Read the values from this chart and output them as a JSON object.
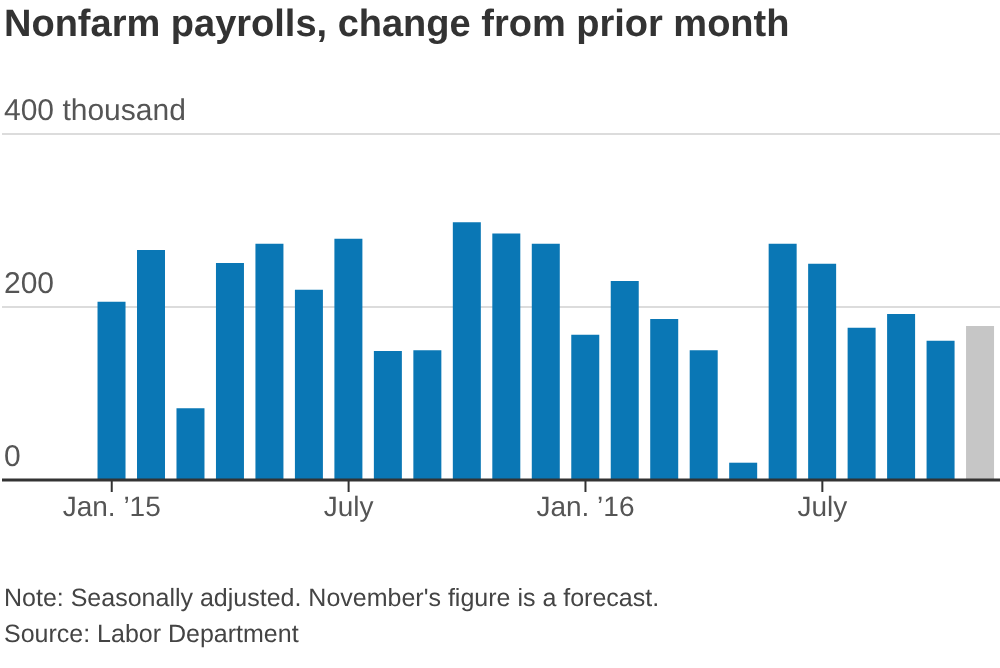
{
  "chart_data": {
    "type": "bar",
    "title": "Nonfarm payrolls, change from prior month",
    "categories": [
      "Jan. ’15",
      null,
      null,
      null,
      null,
      null,
      "July",
      null,
      null,
      null,
      null,
      null,
      "Jan. ’16",
      null,
      null,
      null,
      null,
      null,
      "July",
      null,
      null,
      null,
      null
    ],
    "values": [
      206,
      266,
      83,
      251,
      273,
      220,
      279,
      149,
      150,
      298,
      285,
      273,
      168,
      230,
      186,
      150,
      20,
      273,
      250,
      176,
      192,
      161,
      178
    ],
    "colors": [
      "#0a77b5",
      "#0a77b5",
      "#0a77b5",
      "#0a77b5",
      "#0a77b5",
      "#0a77b5",
      "#0a77b5",
      "#0a77b5",
      "#0a77b5",
      "#0a77b5",
      "#0a77b5",
      "#0a77b5",
      "#0a77b5",
      "#0a77b5",
      "#0a77b5",
      "#0a77b5",
      "#0a77b5",
      "#0a77b5",
      "#0a77b5",
      "#0a77b5",
      "#0a77b5",
      "#0a77b5",
      "#c6c6c6"
    ],
    "ylim": [
      0,
      400
    ],
    "yticks": [
      0,
      200,
      {
        "value": 400,
        "label": "400 thousand"
      }
    ],
    "grid": "y",
    "legend": false,
    "annotations": [
      "Note: Seasonally adjusted. November's figure is a forecast.",
      "Source: Labor Department"
    ]
  }
}
